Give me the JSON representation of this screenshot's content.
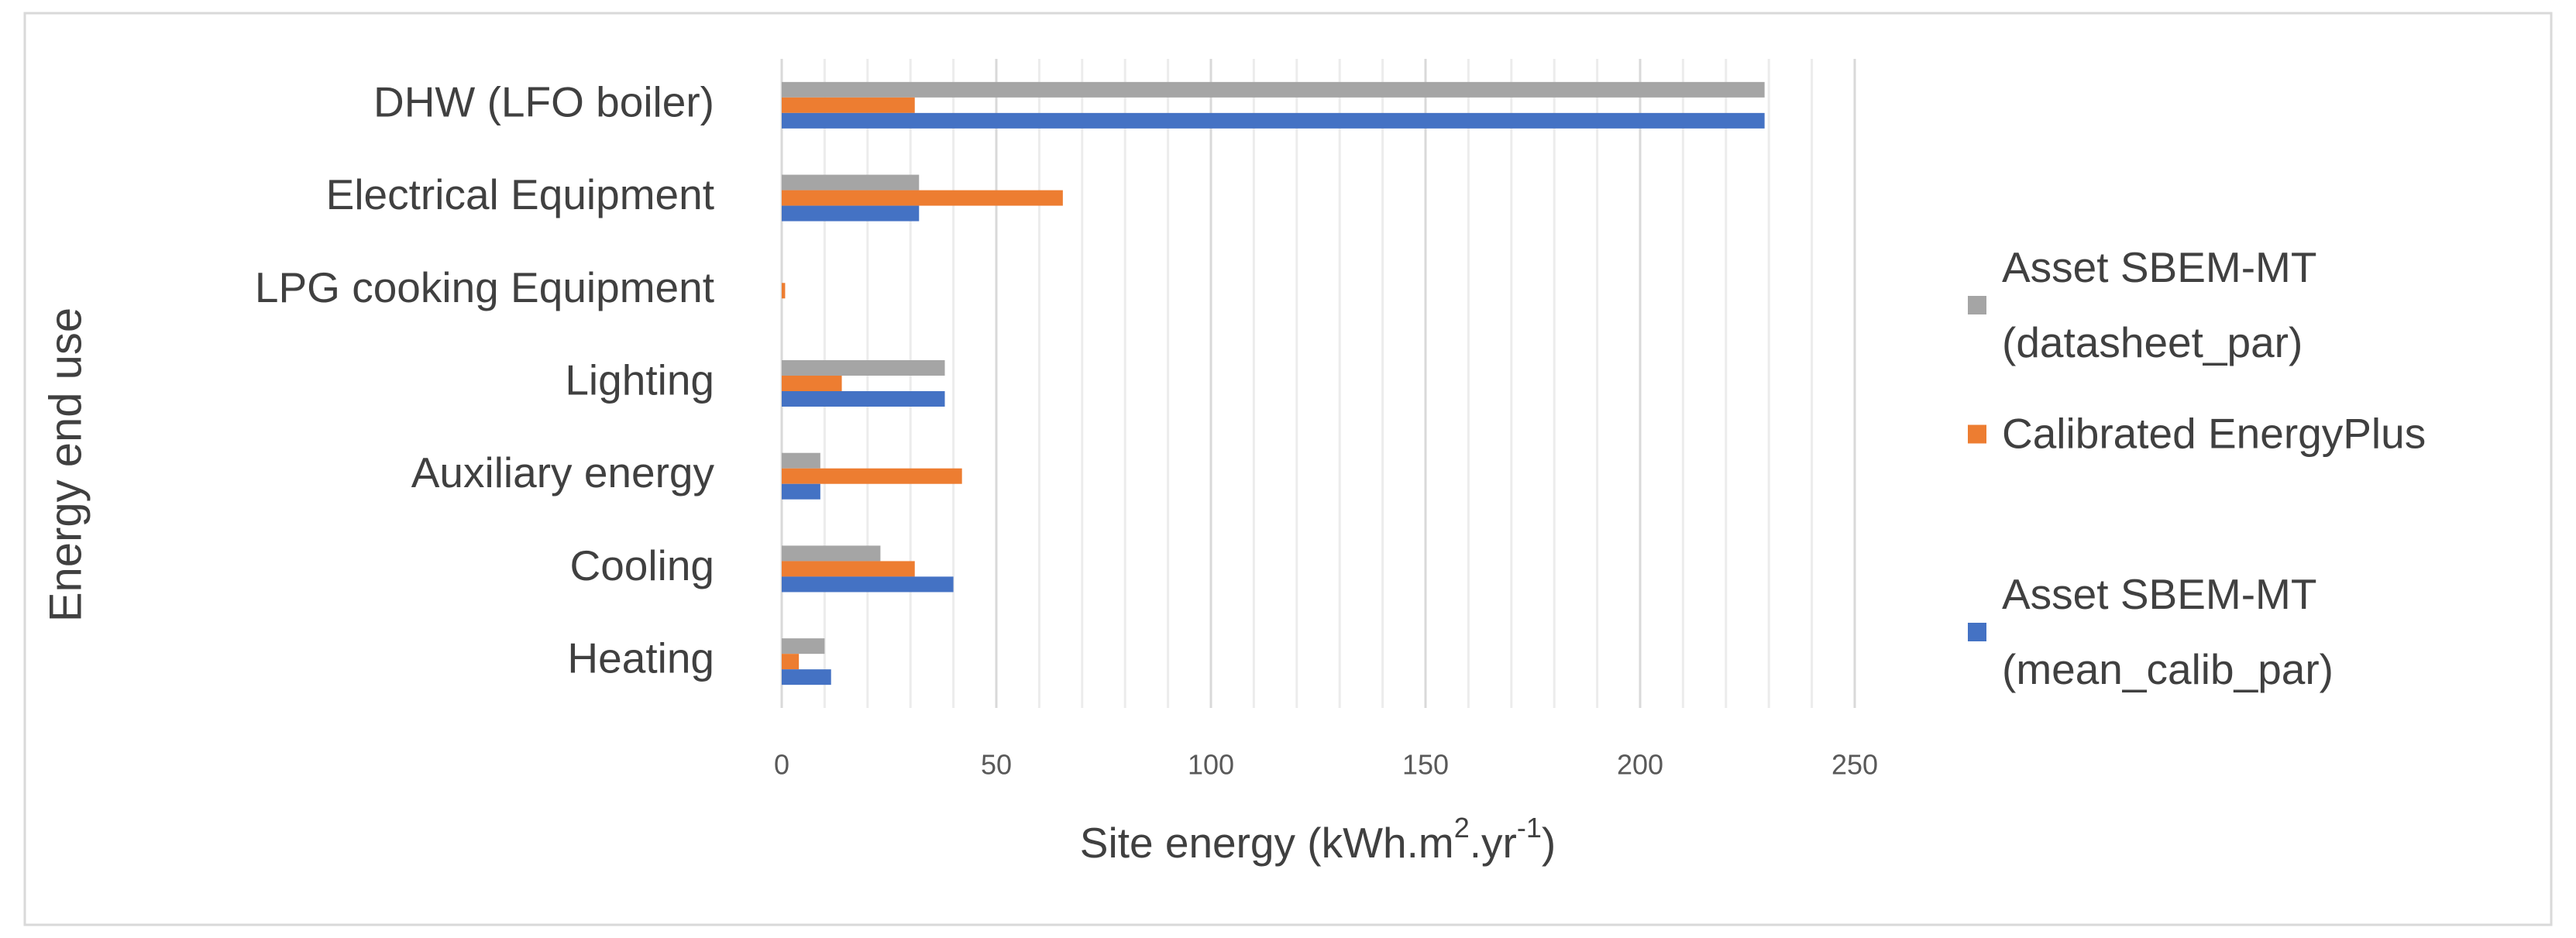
{
  "chart_data": {
    "type": "hbar",
    "y_label": "Energy end use",
    "x_label_parts": [
      "Site energy (kWh.m",
      "2",
      ".yr",
      "-1",
      ")"
    ],
    "categories": [
      "DHW (LFO boiler)",
      "Electrical Equipment",
      "LPG cooking Equipment",
      "Lighting",
      "Auxiliary energy",
      "Cooling",
      "Heating"
    ],
    "series": [
      {
        "name": "Asset SBEM-MT (datasheet_par)",
        "color": "#a5a5a5",
        "values": [
          229,
          32,
          0,
          38,
          9,
          23,
          10
        ]
      },
      {
        "name": "Calibrated EnergyPlus",
        "color": "#ed7d31",
        "values": [
          31,
          65.5,
          0.8,
          14,
          42,
          31,
          4
        ]
      },
      {
        "name": "Asset SBEM-MT (mean_calib_par)",
        "color": "#4472c4",
        "values": [
          229,
          32,
          0,
          38,
          9,
          40,
          11.5
        ]
      }
    ],
    "xlim": [
      0,
      250
    ],
    "xticks": [
      0,
      50,
      100,
      150,
      200,
      250
    ],
    "minor_xticks": [
      10,
      20,
      30,
      40,
      60,
      70,
      80,
      90,
      110,
      120,
      130,
      140,
      160,
      170,
      180,
      190,
      210,
      220,
      230,
      240
    ],
    "grid": true,
    "legend": "right"
  }
}
